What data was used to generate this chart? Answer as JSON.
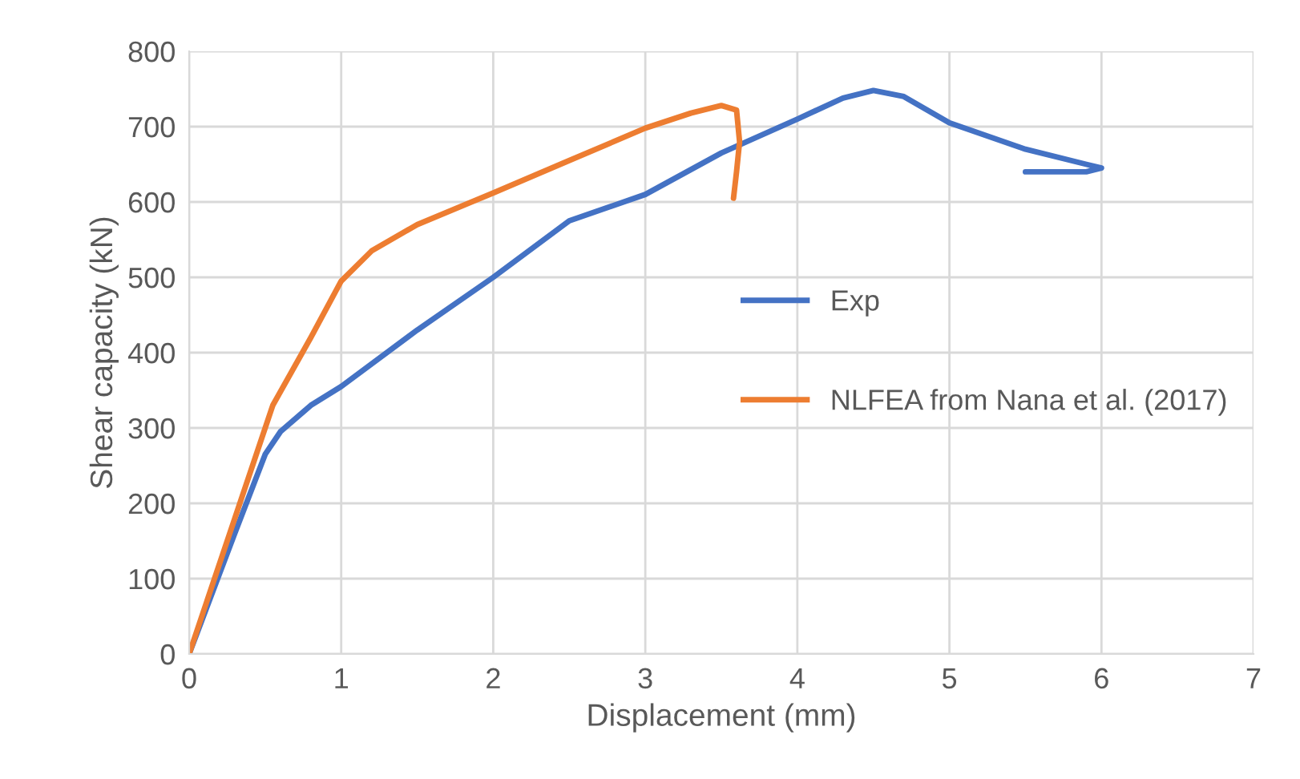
{
  "chart_data": {
    "type": "line",
    "xlabel": "Displacement (mm)",
    "ylabel": "Shear capacity (kN)",
    "xlim": [
      0,
      7
    ],
    "xticks": [
      0,
      1,
      2,
      3,
      4,
      5,
      6,
      7
    ],
    "ylim": [
      0,
      800
    ],
    "yticks": [
      0,
      100,
      200,
      300,
      400,
      500,
      600,
      700,
      800
    ],
    "grid": true,
    "legend": "right",
    "marker": "none",
    "line_style": "solid",
    "series": [
      {
        "name": "Exp",
        "color": "#4472c4",
        "x": [
          0,
          0.3,
          0.5,
          0.6,
          0.8,
          1,
          1.5,
          2,
          2.5,
          3,
          3.5,
          4,
          4.3,
          4.5,
          4.7,
          5,
          5.5,
          5.9,
          6,
          5.9,
          5.5
        ],
        "values": [
          0,
          160,
          265,
          295,
          330,
          355,
          430,
          500,
          575,
          610,
          665,
          710,
          738,
          748,
          740,
          705,
          670,
          650,
          645,
          640,
          640
        ]
      },
      {
        "name": "NLFEA from Nana et al. (2017)",
        "color": "#ed7d31",
        "x": [
          0,
          0.3,
          0.55,
          0.8,
          1,
          1.2,
          1.5,
          2,
          2.5,
          3,
          3.3,
          3.5,
          3.6,
          3.62,
          3.6,
          3.58
        ],
        "values": [
          0,
          180,
          330,
          420,
          495,
          535,
          570,
          612,
          655,
          698,
          718,
          728,
          722,
          680,
          640,
          605
        ]
      }
    ]
  }
}
